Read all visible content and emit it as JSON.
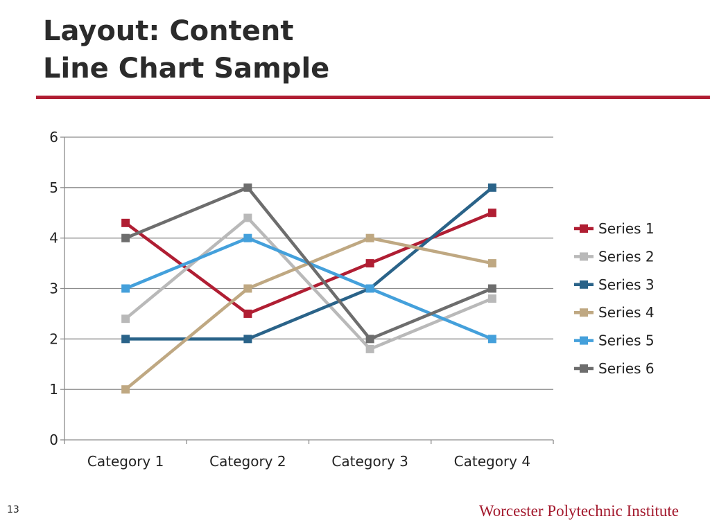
{
  "slide": {
    "title_line1": "Layout: Content",
    "title_line2": "Line Chart Sample",
    "page_number": "13",
    "footer": "Worcester Polytechnic Institute",
    "accent_color": "#b01e33"
  },
  "chart_data": {
    "type": "line",
    "categories": [
      "Category 1",
      "Category 2",
      "Category 3",
      "Category 4"
    ],
    "ylim": [
      0,
      6
    ],
    "yticks": [
      0,
      1,
      2,
      3,
      4,
      5,
      6
    ],
    "grid": true,
    "legend_position": "right",
    "marker": "square",
    "series": [
      {
        "name": "Series 1",
        "color": "#b01e33",
        "values": [
          4.3,
          2.5,
          3.5,
          4.5
        ]
      },
      {
        "name": "Series 2",
        "color": "#b9b9b9",
        "values": [
          2.4,
          4.4,
          1.8,
          2.8
        ]
      },
      {
        "name": "Series 3",
        "color": "#2a6389",
        "values": [
          2,
          2,
          3,
          5
        ]
      },
      {
        "name": "Series 4",
        "color": "#bfa882",
        "values": [
          1,
          3,
          4,
          3.5
        ]
      },
      {
        "name": "Series 5",
        "color": "#44a0db",
        "values": [
          3,
          4,
          3,
          2
        ]
      },
      {
        "name": "Series 6",
        "color": "#6d6d6d",
        "values": [
          4,
          5,
          2,
          3
        ]
      }
    ]
  }
}
